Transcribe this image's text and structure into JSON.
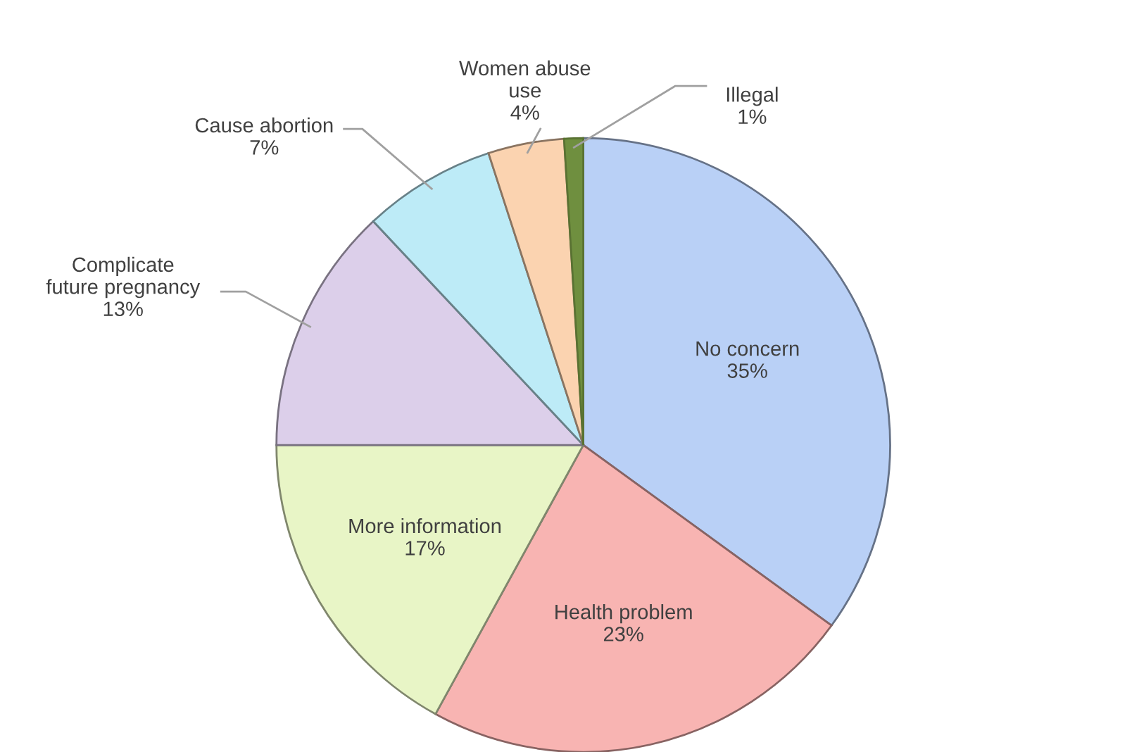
{
  "chart_data": {
    "type": "pie",
    "categories": [
      "No concern",
      "Health problem",
      "More information",
      "Complicate future pregnancy",
      "Cause abortion",
      "Women abuse use",
      "Illegal"
    ],
    "values": [
      35,
      23,
      17,
      13,
      7,
      4,
      1
    ],
    "value_labels": [
      "35%",
      "23%",
      "17%",
      "13%",
      "7%",
      "4%",
      "1%"
    ],
    "colors": [
      "#b9d0f6",
      "#f8b4b2",
      "#e8f5c6",
      "#dccfea",
      "#bdebf7",
      "#fbd3b0",
      "#6f8f3f"
    ]
  }
}
